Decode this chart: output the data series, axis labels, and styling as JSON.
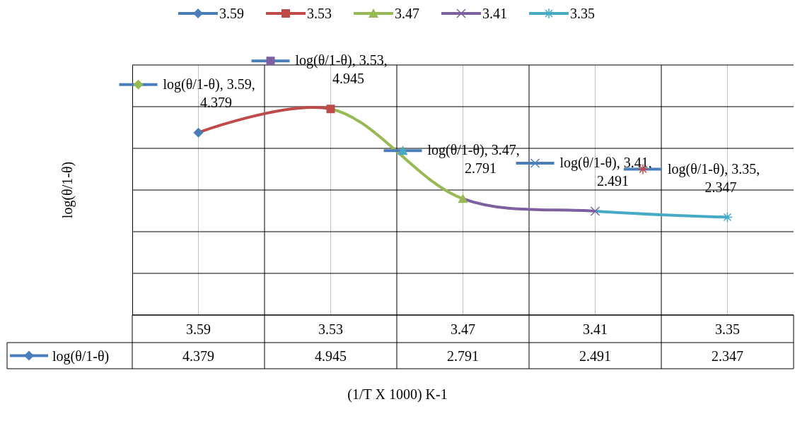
{
  "chart_data": {
    "type": "line",
    "xlabel": "(1/T X 1000) K-1",
    "ylabel": "log(θ/1-θ)",
    "categories": [
      "3.59",
      "3.53",
      "3.47",
      "3.41",
      "3.35"
    ],
    "series": [
      {
        "name": "log(θ/1-θ)",
        "values": [
          4.379,
          4.945,
          2.791,
          2.491,
          2.347
        ]
      }
    ],
    "colors": [
      "#4a7ebb",
      "#be4b48",
      "#98b954",
      "#7d60a0",
      "#46aac5"
    ],
    "annotations": [
      {
        "text": "log(θ/1-θ), 3.59, 4.379",
        "x": "3.59",
        "y": 4.379
      },
      {
        "text": "log(θ/1-θ), 3.53, 4.945",
        "x": "3.53",
        "y": 4.945
      },
      {
        "text": "log(θ/1-θ), 3.47, 2.791",
        "x": "3.47",
        "y": 2.791
      },
      {
        "text": "log(θ/1-θ), 3.41, 2.491",
        "x": "3.41",
        "y": 2.491
      },
      {
        "text": "log(θ/1-θ), 3.35, 2.347",
        "x": "3.35",
        "y": 2.347
      }
    ],
    "ylim": [
      0,
      6
    ],
    "yticks": [
      {
        "value": 0,
        "label": null
      },
      {
        "value": 1,
        "label": null
      },
      {
        "value": 2,
        "label": null
      },
      {
        "value": 3,
        "label": null
      },
      {
        "value": 4,
        "label": null
      },
      {
        "value": 5,
        "label": null
      },
      {
        "value": 6,
        "label": null
      }
    ],
    "tick_labels": "x",
    "grid": true,
    "legend": "bottom left",
    "marker": "diamond",
    "data_labels": true
  }
}
